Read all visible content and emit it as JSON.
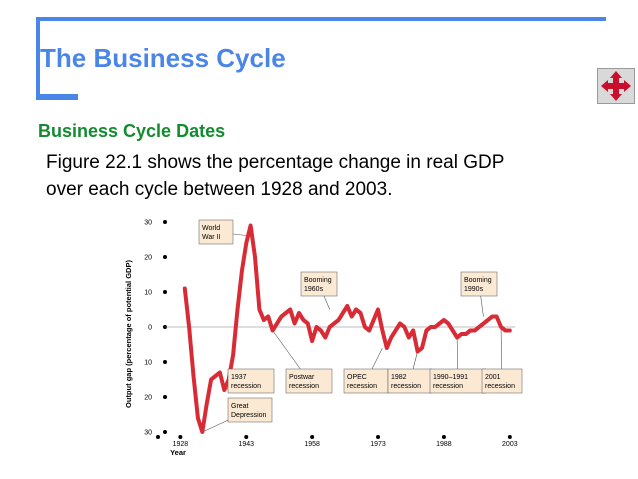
{
  "slide": {
    "title": "The Business Cycle",
    "subtitle": "Business Cycle Dates",
    "body": "Figure 22.1 shows the percentage change in real GDP over each cycle between 1928 and 2003.",
    "nav_icon": "four-way-arrow-icon",
    "accent_color": "#4a86e8",
    "subtitle_color": "#138c2f"
  },
  "chart_data": {
    "type": "line",
    "xlabel": "Year",
    "ylabel": "Output gap (percentage of potential GDP)",
    "xlim": [
      1922,
      2006
    ],
    "ylim": [
      -30,
      30
    ],
    "x_ticks": [
      1928,
      1943,
      1958,
      1973,
      1988,
      2003
    ],
    "y_ticks": [
      30,
      20,
      10,
      0,
      10,
      20,
      30
    ],
    "y_tick_values": [
      30,
      20,
      10,
      0,
      -10,
      -20,
      -30
    ],
    "line_color": "#d92b36",
    "series": [
      {
        "x": [
          1929,
          1930,
          1931,
          1932,
          1933,
          1934,
          1935,
          1936,
          1937,
          1938,
          1939,
          1940,
          1941,
          1942,
          1943,
          1944,
          1945,
          1946,
          1947,
          1948,
          1949,
          1950,
          1951,
          1952,
          1953,
          1954,
          1955,
          1956,
          1957,
          1958,
          1959,
          1960,
          1961,
          1962,
          1963,
          1964,
          1965,
          1966,
          1967,
          1968,
          1969,
          1970,
          1971,
          1972,
          1973,
          1974,
          1975,
          1976,
          1977,
          1978,
          1979,
          1980,
          1981,
          1982,
          1983,
          1984,
          1985,
          1986,
          1987,
          1988,
          1989,
          1990,
          1991,
          1992,
          1993,
          1994,
          1995,
          1996,
          1997,
          1998,
          1999,
          2000,
          2001,
          2002,
          2003
        ],
        "y": [
          11,
          0,
          -14,
          -26,
          -30,
          -22,
          -15,
          -14,
          -13,
          -18,
          -15,
          -8,
          5,
          16,
          24,
          29,
          20,
          5,
          2,
          3,
          -1,
          1,
          3,
          4,
          5,
          1,
          4,
          2,
          1,
          -4,
          0,
          -1,
          -3,
          0,
          1,
          2,
          4,
          6,
          3,
          5,
          4,
          0,
          -1,
          2,
          5,
          -1,
          -6,
          -3,
          -1,
          1,
          0,
          -3,
          -1,
          -7,
          -6,
          -1,
          0,
          0,
          1,
          2,
          1,
          -1,
          -3,
          -2,
          -2,
          -1,
          -1,
          0,
          1,
          2,
          3,
          3,
          0,
          -1,
          -1
        ]
      }
    ],
    "annotations": [
      {
        "lines": [
          "World",
          "War II"
        ]
      },
      {
        "lines": [
          "Booming",
          "1960s"
        ]
      },
      {
        "lines": [
          "Booming",
          "1990s"
        ]
      },
      {
        "lines": [
          "1937",
          "recession"
        ]
      },
      {
        "lines": [
          "Great",
          "Depression"
        ]
      },
      {
        "lines": [
          "Postwar",
          "recession"
        ]
      },
      {
        "lines": [
          "OPEC",
          "recession"
        ]
      },
      {
        "lines": [
          "1982",
          "recession"
        ]
      },
      {
        "lines": [
          "1990–1991",
          "recession"
        ]
      },
      {
        "lines": [
          "2001",
          "recession"
        ]
      }
    ]
  }
}
